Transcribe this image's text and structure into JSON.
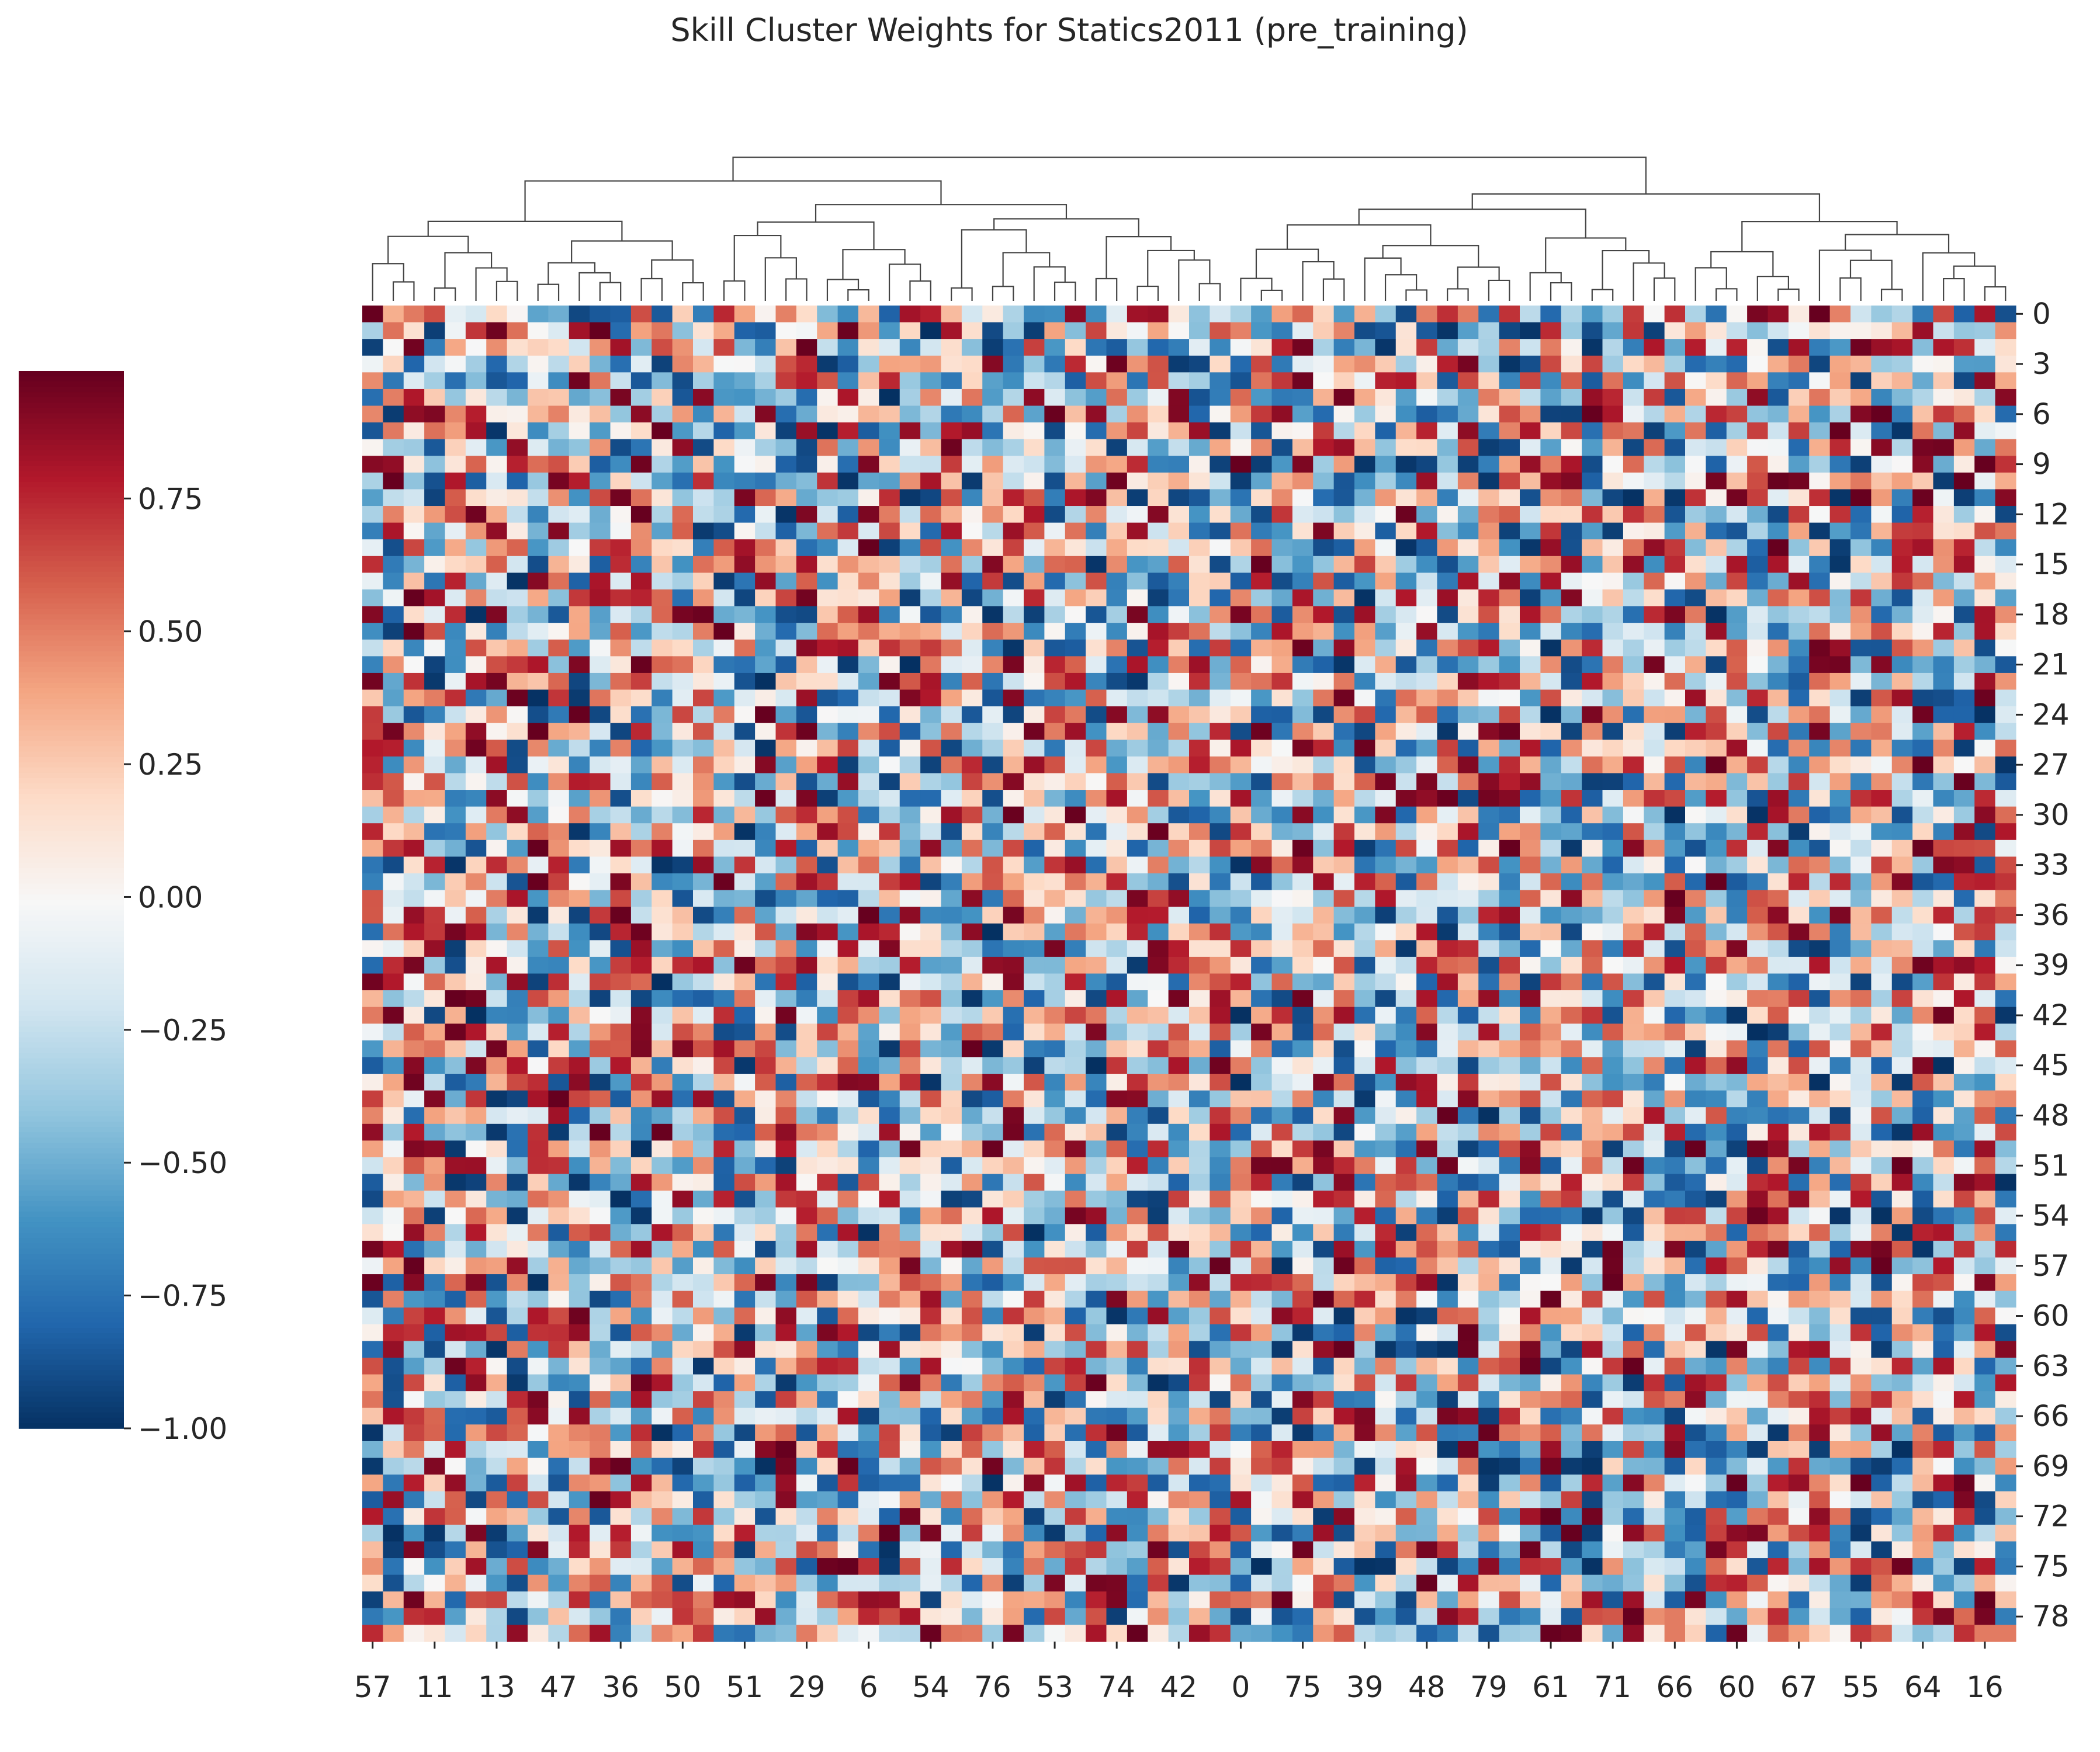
{
  "chart_data": {
    "type": "heatmap",
    "title": "Skill Cluster Weights for Statics2011 (pre_training)",
    "colormap": "RdBu_r",
    "vmin": -1.0,
    "vmax": 0.99,
    "n_rows": 80,
    "n_cols": 80,
    "col_ticks": [
      "57",
      "11",
      "13",
      "47",
      "36",
      "50",
      "51",
      "29",
      "6",
      "54",
      "76",
      "53",
      "74",
      "42",
      "0",
      "75",
      "39",
      "48",
      "79",
      "61",
      "71",
      "66",
      "60",
      "67",
      "55",
      "64",
      "16"
    ],
    "row_ticks": [
      "0",
      "3",
      "6",
      "9",
      "12",
      "15",
      "18",
      "21",
      "24",
      "27",
      "30",
      "33",
      "36",
      "39",
      "42",
      "45",
      "48",
      "51",
      "54",
      "57",
      "60",
      "63",
      "66",
      "69",
      "72",
      "75",
      "78"
    ],
    "colorbar": {
      "ticks": [
        0.75,
        0.5,
        0.25,
        0.0,
        -0.25,
        -0.5,
        -0.75,
        -1.0
      ],
      "tick_labels": [
        "0.75",
        "0.50",
        "0.25",
        "0.00",
        "−0.25",
        "−0.50",
        "−0.75",
        "−1.00"
      ]
    },
    "dendrogram": "column clustering dendrogram (top)",
    "values_note_seed": 20110217
  }
}
